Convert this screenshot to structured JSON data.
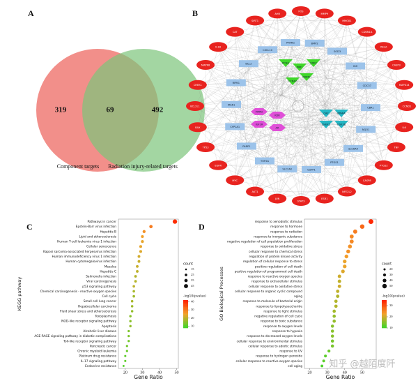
{
  "watermark": "知乎 @越陌度阡",
  "chart_data": [
    {
      "type": "venn",
      "panel_label": "A",
      "sets": [
        {
          "name": "Component targets",
          "color": "#f07b76",
          "value": 319
        },
        {
          "name": "Radiation injury-related targets",
          "color": "#7cc47a",
          "value": 492
        }
      ],
      "intersection": 69
    },
    {
      "type": "network",
      "panel_label": "B",
      "node_groups": [
        {
          "color": "#e8231f",
          "shape": "ellipse",
          "nodes": [
            "FOS",
            "MMP9",
            "HMOX1",
            "CDKN1A",
            "RELA",
            "CASP3",
            "MAPK14",
            "CCND1",
            "IL6",
            "TNF",
            "PTGS2",
            "CASP8",
            "NFE2L2",
            "ESR1",
            "STAT3",
            "JUN",
            "AKT1",
            "MYC",
            "EGFR",
            "TP53",
            "BAX",
            "BCL2L1",
            "CHEK1",
            "MAPK8",
            "IL1B",
            "CAT",
            "SIRT1",
            "AHR"
          ]
        },
        {
          "color": "#9cc3ea",
          "shape": "rect",
          "nodes": [
            "CXCL10",
            "PPARG",
            "BMP2",
            "SOD3",
            "IGH",
            "CDC37",
            "CBR1",
            "NQO1",
            "SLC6A4",
            "PTGS1",
            "GSTP1",
            "SLC2A2",
            "TOP2A",
            "PARP1",
            "CYP1A1",
            "IRAK1",
            "RIPK1",
            "BCL2"
          ]
        },
        {
          "color": "#3fd62a",
          "shape": "triangle",
          "nodes": [
            "PCNA",
            "PIM1",
            "CDK2",
            "CCNA2",
            "MDM2"
          ]
        },
        {
          "color": "#e04fd8",
          "shape": "diamond",
          "nodes": [
            "MMP2",
            "KDR",
            "IGF1R",
            "AR"
          ]
        },
        {
          "color": "#26b7c4",
          "shape": "triangle",
          "nodes": [
            "CA2",
            "PPARA",
            "CHEK2",
            "GSK3B"
          ]
        }
      ]
    },
    {
      "type": "dotplot",
      "panel_label": "C",
      "ylabel": "KEGG pathway",
      "xlabel": "Gene Ratio",
      "categories": [
        "Pathways in cancer",
        "Epstein-Barr virus infection",
        "Hepatitis B",
        "Lipid and atherosclerosis",
        "Human T-cell leukemia virus 1 infection",
        "Cellular senescence",
        "Kaposi sarcoma-associated herpesvirus infection",
        "Human immunodeficiency virus 1 infection",
        "Human cytomegalovirus infection",
        "Measles",
        "Hepatitis C",
        "Salmonella infection",
        "Viral carcinogenesis",
        "p53 signaling pathway",
        "Chemical carcinogenesis - reactive oxygen species",
        "Cell cycle",
        "Small cell lung cancer",
        "Hepatocellular carcinoma",
        "Fluid shear stress and atherosclerosis",
        "Toxoplasmosis",
        "NOD-like receptor signaling pathway",
        "Apoptosis",
        "Alcoholic liver disease",
        "AGE-RAGE signaling pathway in diabetic complications",
        "Toll-like receptor signaling pathway",
        "Pancreatic cancer",
        "Chronic myeloid leukemia",
        "Platinum drug resistance",
        "IL-17 signaling pathway",
        "Endocrine resistance"
      ],
      "values": [
        49,
        35,
        31,
        30,
        30,
        29,
        29,
        28,
        28,
        27,
        27,
        26,
        26,
        25,
        25,
        25,
        24,
        24,
        24,
        23,
        23,
        23,
        22,
        22,
        22,
        21,
        21,
        20,
        20,
        19
      ],
      "pvalues": [
        40,
        30,
        27,
        25,
        24,
        24,
        23,
        22,
        21,
        21,
        20,
        19,
        19,
        20,
        18,
        17,
        18,
        17,
        16,
        15,
        15,
        16,
        14,
        14,
        13,
        13,
        12,
        11,
        11,
        10
      ],
      "xlim": [
        16,
        51
      ],
      "xticks": [
        20,
        30,
        40,
        50
      ],
      "size_title": "count",
      "size_legend": [
        15,
        25,
        35,
        45
      ],
      "color_title": "-log10(pvalue)",
      "clim": [
        8,
        42
      ],
      "cticks": [
        10,
        20,
        30,
        40
      ],
      "colors": [
        "#ff1e00",
        "#f2a22c",
        "#3fd62a"
      ]
    },
    {
      "type": "dotplot",
      "panel_label": "D",
      "ylabel": "GO Biological Processes",
      "xlabel": "Gene Ratio",
      "categories": [
        "response to xenobiotic stimulus",
        "response to hormone",
        "response to radiation",
        "response to inorganic substance",
        "negative regulation of cell population proliferation",
        "response to oxidative stress",
        "cellular response to chemical stress",
        "regulation of protein kinase activity",
        "regulation of cellular response to stress",
        "positive regulation of cell death",
        "positive regulation of programmed cell death",
        "response to reactive oxygen species",
        "response to extracellular stimulus",
        "cellular response to oxidative stress",
        "cellular response to organic cyclic compound",
        "aging",
        "response to molecule of bacterial origin",
        "response to lipopolysaccharide",
        "response to light stimulus",
        "negative regulation of cell cycle",
        "response to toxic substance",
        "response to oxygen levels",
        "response to hypoxia",
        "response to decreased oxygen levels",
        "cellular response to environmental stimulus",
        "cellular response to abiotic stimulus",
        "response to UV",
        "response to hydrogen peroxide",
        "cellular response to reactive oxygen species",
        "cell aging"
      ],
      "values": [
        55,
        50,
        46,
        44,
        44,
        43,
        42,
        41,
        40,
        40,
        39,
        37,
        37,
        37,
        36,
        36,
        35,
        35,
        34,
        34,
        34,
        33,
        33,
        33,
        33,
        33,
        31,
        29,
        28,
        27
      ],
      "pvalues": [
        34,
        28,
        26,
        25,
        25,
        24,
        24,
        23,
        22,
        22,
        21,
        20,
        19,
        20,
        19,
        18,
        18,
        18,
        17,
        16,
        16,
        15,
        15,
        15,
        14,
        14,
        13,
        12,
        12,
        11
      ],
      "xlim": [
        17,
        58
      ],
      "xticks": [
        20,
        30,
        40,
        50
      ],
      "size_title": "count",
      "size_legend": [
        20,
        30,
        40,
        50
      ],
      "color_title": "-log10(pvalue)",
      "clim": [
        10,
        35
      ],
      "cticks": [
        10,
        20,
        30
      ],
      "colors": [
        "#ff1e00",
        "#f2a22c",
        "#3fd62a"
      ]
    }
  ]
}
